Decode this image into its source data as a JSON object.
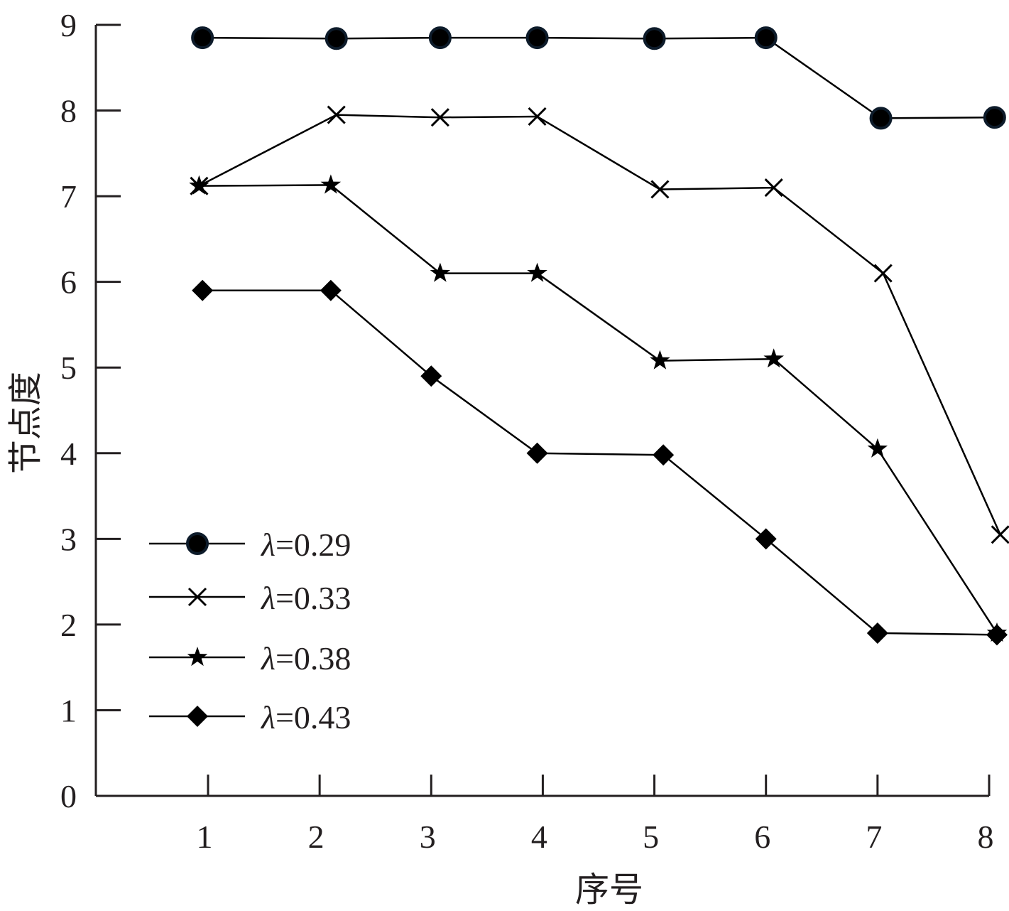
{
  "chart_data": {
    "type": "line",
    "xlabel": "序号",
    "ylabel": "节点度",
    "xlim": [
      0,
      8
    ],
    "ylim": [
      0,
      9
    ],
    "xticks": [
      "1",
      "2",
      "3",
      "4",
      "5",
      "6",
      "7",
      "8"
    ],
    "yticks": [
      "0",
      "1",
      "2",
      "3",
      "4",
      "5",
      "6",
      "7",
      "8",
      "9"
    ],
    "grid": false,
    "legend_position": "bottom-left",
    "series": [
      {
        "name_symbol": "λ",
        "name_value": "=0.29",
        "marker": "circle",
        "color": "#0d1b2a",
        "x": [
          0.95,
          2.15,
          3.08,
          3.95,
          5.0,
          6.0,
          7.03,
          8.05
        ],
        "y": [
          8.85,
          8.84,
          8.85,
          8.85,
          8.84,
          8.85,
          7.91,
          7.92
        ]
      },
      {
        "name_symbol": "λ",
        "name_value": "=0.33",
        "marker": "x",
        "color": "#000000",
        "x": [
          0.92,
          2.15,
          3.08,
          3.95,
          5.05,
          6.07,
          7.05,
          8.1
        ],
        "y": [
          7.12,
          7.95,
          7.92,
          7.93,
          7.08,
          7.1,
          6.1,
          3.05
        ]
      },
      {
        "name_symbol": "λ",
        "name_value": "=0.38",
        "marker": "star",
        "color": "#000000",
        "x": [
          0.92,
          2.1,
          3.08,
          3.95,
          5.05,
          6.07,
          7.0,
          8.07
        ],
        "y": [
          7.12,
          7.13,
          6.1,
          6.1,
          5.08,
          5.1,
          4.05,
          1.9
        ]
      },
      {
        "name_symbol": "λ",
        "name_value": "=0.43",
        "marker": "diamond",
        "color": "#000000",
        "x": [
          0.95,
          2.1,
          3.0,
          3.95,
          5.08,
          6.0,
          7.0,
          8.07
        ],
        "y": [
          5.9,
          5.9,
          4.9,
          4.0,
          3.98,
          3.0,
          1.9,
          1.88
        ]
      }
    ]
  }
}
